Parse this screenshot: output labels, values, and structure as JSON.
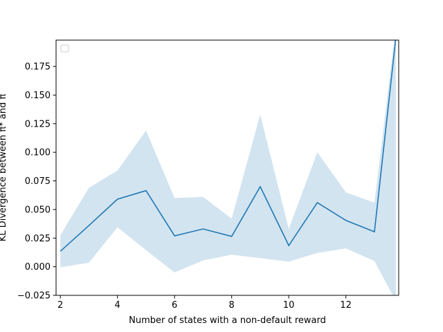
{
  "chart_data": {
    "type": "line",
    "xlabel": "Number of states with a non-default reward",
    "ylabel": "KL Divergence between π* and π̂",
    "xlim": [
      1.85,
      13.85
    ],
    "ylim": [
      -0.025,
      0.198
    ],
    "x_ticks": [
      2,
      4,
      6,
      8,
      10,
      12
    ],
    "y_ticks": [
      -0.025,
      0.0,
      0.025,
      0.05,
      0.075,
      0.1,
      0.125,
      0.15,
      0.175
    ],
    "x_tick_labels": [
      "2",
      "4",
      "6",
      "8",
      "10",
      "12"
    ],
    "y_tick_labels": [
      "−0.025",
      "0.000",
      "0.025",
      "0.050",
      "0.075",
      "0.100",
      "0.125",
      "0.150",
      "0.175"
    ],
    "grid": false,
    "legend": {
      "placement": "upper-left",
      "entries": []
    },
    "series": [
      {
        "x": [
          2,
          3,
          4,
          5,
          6,
          7,
          8,
          9,
          10,
          11,
          12,
          13,
          13.75
        ],
        "mean": [
          0.0135,
          0.036,
          0.059,
          0.0665,
          0.027,
          0.033,
          0.0265,
          0.07,
          0.0185,
          0.056,
          0.0405,
          0.0305,
          0.2
        ],
        "lower": [
          -0.0005,
          0.0035,
          0.0345,
          0.0145,
          -0.005,
          0.0055,
          0.0105,
          0.0075,
          0.0045,
          0.012,
          0.016,
          0.005,
          -0.03
        ],
        "upper": [
          0.0275,
          0.069,
          0.084,
          0.119,
          0.06,
          0.061,
          0.042,
          0.133,
          0.033,
          0.1,
          0.065,
          0.056,
          0.21
        ],
        "color": "#1f77b4",
        "band_color": "#1f77b4"
      }
    ]
  }
}
